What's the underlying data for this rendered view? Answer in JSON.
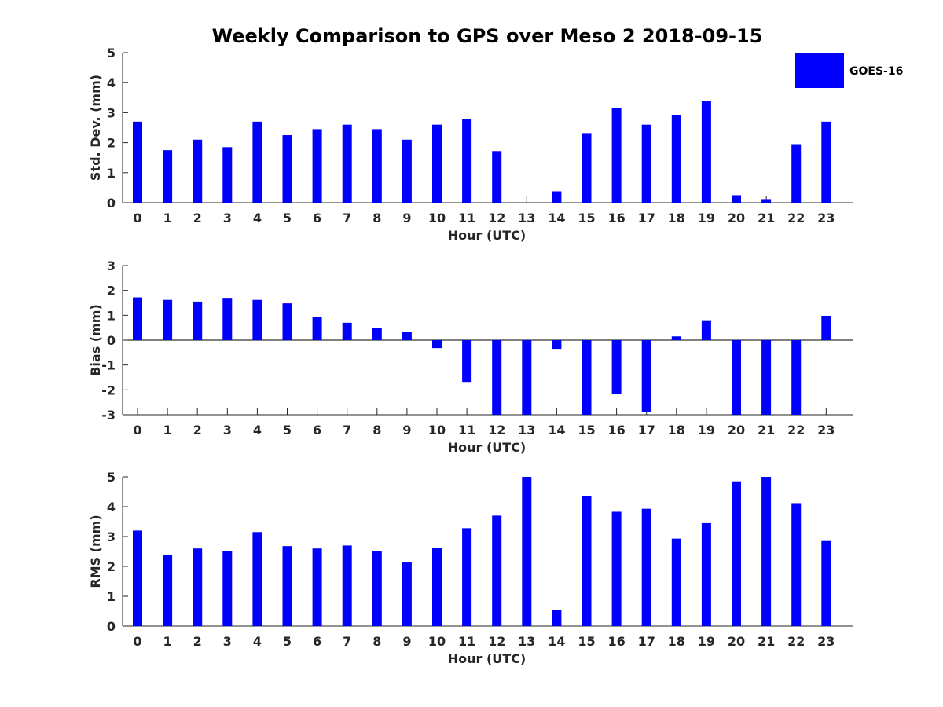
{
  "title": "Weekly Comparison to GPS over Meso 2 2018-09-15",
  "legend": {
    "label": "GOES-16",
    "position": "top-right"
  },
  "colors": {
    "bar": "#0000ff",
    "axis": "#262626",
    "text": "#000000"
  },
  "chart_data": [
    {
      "type": "bar",
      "name": "std-dev",
      "title": "Weekly Comparison to GPS over Meso 2 2018-09-15",
      "xlabel": "Hour (UTC)",
      "ylabel": "Std. Dev. (mm)",
      "ylim": [
        0,
        5
      ],
      "yticks": [
        "0",
        "1",
        "2",
        "3",
        "4",
        "5"
      ],
      "categories": [
        "0",
        "1",
        "2",
        "3",
        "4",
        "5",
        "6",
        "7",
        "8",
        "9",
        "10",
        "11",
        "12",
        "13",
        "14",
        "15",
        "16",
        "17",
        "18",
        "19",
        "20",
        "21",
        "22",
        "23"
      ],
      "series": [
        {
          "name": "GOES-16",
          "values": [
            2.7,
            1.75,
            2.1,
            1.85,
            2.7,
            2.25,
            2.45,
            2.6,
            2.45,
            2.1,
            2.6,
            2.8,
            1.72,
            0,
            0.38,
            2.32,
            3.15,
            2.6,
            2.92,
            3.38,
            0.25,
            0.12,
            1.95,
            2.7
          ]
        }
      ]
    },
    {
      "type": "bar",
      "name": "bias",
      "xlabel": "Hour (UTC)",
      "ylabel": "Bias (mm)",
      "ylim": [
        -3,
        3
      ],
      "yticks": [
        "-3",
        "-2",
        "-1",
        "0",
        "1",
        "2",
        "3"
      ],
      "categories": [
        "0",
        "1",
        "2",
        "3",
        "4",
        "5",
        "6",
        "7",
        "8",
        "9",
        "10",
        "11",
        "12",
        "13",
        "14",
        "15",
        "16",
        "17",
        "18",
        "19",
        "20",
        "21",
        "22",
        "23"
      ],
      "series": [
        {
          "name": "GOES-16",
          "values": [
            1.72,
            1.62,
            1.55,
            1.7,
            1.62,
            1.48,
            0.92,
            0.7,
            0.48,
            0.32,
            -0.32,
            -1.68,
            -3.0,
            -3.0,
            -0.35,
            -3.0,
            -2.18,
            -2.9,
            0.15,
            0.8,
            -3.0,
            -3.0,
            -3.0,
            0.98
          ]
        }
      ]
    },
    {
      "type": "bar",
      "name": "rms",
      "xlabel": "Hour (UTC)",
      "ylabel": "RMS (mm)",
      "ylim": [
        0,
        5
      ],
      "yticks": [
        "0",
        "1",
        "2",
        "3",
        "4",
        "5"
      ],
      "categories": [
        "0",
        "1",
        "2",
        "3",
        "4",
        "5",
        "6",
        "7",
        "8",
        "9",
        "10",
        "11",
        "12",
        "13",
        "14",
        "15",
        "16",
        "17",
        "18",
        "19",
        "20",
        "21",
        "22",
        "23"
      ],
      "series": [
        {
          "name": "GOES-16",
          "values": [
            3.2,
            2.38,
            2.6,
            2.52,
            3.15,
            2.68,
            2.6,
            2.7,
            2.5,
            2.13,
            2.62,
            3.28,
            3.7,
            5.0,
            0.53,
            4.35,
            3.83,
            3.93,
            2.93,
            3.45,
            4.85,
            5.0,
            4.12,
            2.85
          ]
        }
      ]
    }
  ]
}
